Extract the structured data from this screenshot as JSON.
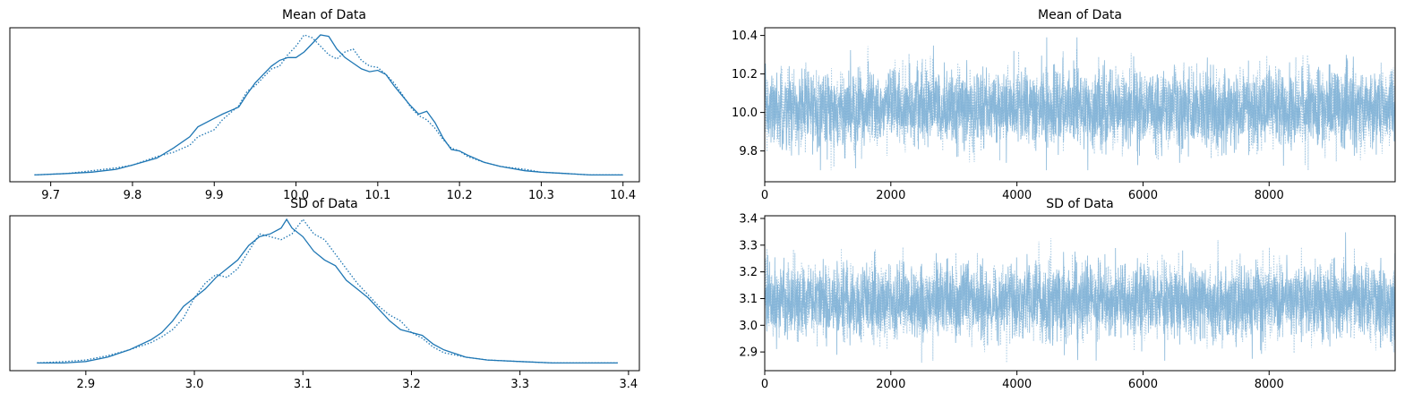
{
  "colors": {
    "series": "#1f77b4",
    "trace": "#7fb1d6"
  },
  "chart_data": [
    {
      "type": "line",
      "panel": "density-mean",
      "title": "Mean of Data",
      "xlim": [
        9.65,
        10.42
      ],
      "xticks": [
        9.7,
        9.8,
        9.9,
        10.0,
        10.1,
        10.2,
        10.3,
        10.4
      ],
      "xticklabels": [
        "9.7",
        "9.8",
        "9.9",
        "10.0",
        "10.1",
        "10.2",
        "10.3",
        "10.4"
      ],
      "yticks": [],
      "series": [
        {
          "style": "solid",
          "x": [
            9.68,
            9.72,
            9.75,
            9.78,
            9.8,
            9.83,
            9.85,
            9.87,
            9.88,
            9.9,
            9.91,
            9.93,
            9.94,
            9.95,
            9.96,
            9.97,
            9.98,
            9.99,
            10.0,
            10.01,
            10.02,
            10.03,
            10.04,
            10.05,
            10.06,
            10.07,
            10.08,
            10.09,
            10.1,
            10.11,
            10.12,
            10.13,
            10.14,
            10.15,
            10.16,
            10.17,
            10.18,
            10.19,
            10.2,
            10.21,
            10.23,
            10.25,
            10.28,
            10.3,
            10.33,
            10.36,
            10.4
          ],
          "y": [
            0.01,
            0.02,
            0.03,
            0.05,
            0.08,
            0.13,
            0.2,
            0.28,
            0.35,
            0.41,
            0.44,
            0.49,
            0.58,
            0.66,
            0.72,
            0.78,
            0.82,
            0.84,
            0.84,
            0.88,
            0.94,
            1.0,
            0.99,
            0.9,
            0.84,
            0.8,
            0.76,
            0.74,
            0.75,
            0.72,
            0.64,
            0.57,
            0.5,
            0.44,
            0.46,
            0.38,
            0.27,
            0.19,
            0.18,
            0.15,
            0.1,
            0.07,
            0.04,
            0.03,
            0.02,
            0.01,
            0.01
          ]
        },
        {
          "style": "dotted",
          "x": [
            9.68,
            9.72,
            9.75,
            9.78,
            9.8,
            9.83,
            9.85,
            9.87,
            9.88,
            9.9,
            9.91,
            9.93,
            9.94,
            9.95,
            9.96,
            9.97,
            9.98,
            9.99,
            10.0,
            10.01,
            10.02,
            10.03,
            10.04,
            10.05,
            10.06,
            10.07,
            10.08,
            10.09,
            10.1,
            10.11,
            10.12,
            10.13,
            10.14,
            10.15,
            10.16,
            10.17,
            10.18,
            10.19,
            10.2,
            10.21,
            10.23,
            10.25,
            10.28,
            10.3,
            10.33,
            10.36,
            10.4
          ],
          "y": [
            0.01,
            0.02,
            0.04,
            0.06,
            0.08,
            0.14,
            0.17,
            0.22,
            0.28,
            0.33,
            0.4,
            0.5,
            0.6,
            0.64,
            0.7,
            0.76,
            0.78,
            0.86,
            0.92,
            1.0,
            0.98,
            0.92,
            0.86,
            0.83,
            0.88,
            0.9,
            0.82,
            0.78,
            0.77,
            0.72,
            0.66,
            0.58,
            0.49,
            0.43,
            0.4,
            0.34,
            0.26,
            0.2,
            0.18,
            0.14,
            0.1,
            0.07,
            0.05,
            0.03,
            0.02,
            0.01,
            0.01
          ]
        }
      ]
    },
    {
      "type": "line",
      "panel": "trace-mean",
      "title": "Mean of Data",
      "xlim": [
        0,
        9999
      ],
      "ylim": [
        9.64,
        10.44
      ],
      "xticks": [
        0,
        2000,
        4000,
        6000,
        8000
      ],
      "xticklabels": [
        "0",
        "2000",
        "4000",
        "6000",
        "8000"
      ],
      "yticks": [
        9.8,
        10.0,
        10.2,
        10.4
      ],
      "yticklabels": [
        "9.8",
        "10.0",
        "10.2",
        "10.4"
      ],
      "series": [
        {
          "style": "solid",
          "center": 10.02,
          "sd": 0.1,
          "min": 9.7,
          "max": 10.39,
          "n": 10000
        },
        {
          "style": "dotted",
          "center": 10.02,
          "sd": 0.1,
          "min": 9.7,
          "max": 10.39,
          "n": 10000
        }
      ]
    },
    {
      "type": "line",
      "panel": "density-sd",
      "title": "SD of Data",
      "xlim": [
        2.83,
        3.41
      ],
      "xticks": [
        2.9,
        3.0,
        3.1,
        3.2,
        3.3,
        3.4
      ],
      "xticklabels": [
        "2.9",
        "3.0",
        "3.1",
        "3.2",
        "3.3",
        "3.4"
      ],
      "yticks": [],
      "series": [
        {
          "style": "solid",
          "x": [
            2.855,
            2.88,
            2.9,
            2.92,
            2.94,
            2.96,
            2.97,
            2.98,
            2.99,
            3.0,
            3.01,
            3.02,
            3.03,
            3.04,
            3.05,
            3.06,
            3.07,
            3.08,
            3.085,
            3.09,
            3.1,
            3.11,
            3.12,
            3.13,
            3.14,
            3.15,
            3.16,
            3.17,
            3.18,
            3.19,
            3.2,
            3.21,
            3.22,
            3.23,
            3.25,
            3.27,
            3.3,
            3.33,
            3.36,
            3.39
          ],
          "y": [
            0.01,
            0.01,
            0.02,
            0.05,
            0.1,
            0.17,
            0.22,
            0.3,
            0.4,
            0.46,
            0.52,
            0.6,
            0.66,
            0.72,
            0.82,
            0.88,
            0.9,
            0.94,
            1.0,
            0.94,
            0.88,
            0.78,
            0.72,
            0.68,
            0.58,
            0.52,
            0.46,
            0.38,
            0.3,
            0.24,
            0.22,
            0.2,
            0.14,
            0.1,
            0.05,
            0.03,
            0.02,
            0.01,
            0.01,
            0.01
          ]
        },
        {
          "style": "dotted",
          "x": [
            2.855,
            2.88,
            2.9,
            2.92,
            2.94,
            2.96,
            2.97,
            2.98,
            2.99,
            3.0,
            3.01,
            3.02,
            3.03,
            3.04,
            3.05,
            3.06,
            3.07,
            3.08,
            3.085,
            3.09,
            3.1,
            3.11,
            3.12,
            3.13,
            3.14,
            3.15,
            3.16,
            3.17,
            3.18,
            3.19,
            3.2,
            3.21,
            3.22,
            3.23,
            3.25,
            3.27,
            3.3,
            3.33,
            3.36,
            3.39
          ],
          "y": [
            0.01,
            0.02,
            0.03,
            0.06,
            0.1,
            0.15,
            0.19,
            0.24,
            0.32,
            0.46,
            0.56,
            0.62,
            0.6,
            0.66,
            0.78,
            0.9,
            0.88,
            0.86,
            0.88,
            0.9,
            1.0,
            0.9,
            0.86,
            0.76,
            0.66,
            0.56,
            0.48,
            0.4,
            0.34,
            0.3,
            0.22,
            0.18,
            0.12,
            0.08,
            0.05,
            0.03,
            0.02,
            0.01,
            0.01,
            0.01
          ]
        }
      ]
    },
    {
      "type": "line",
      "panel": "trace-sd",
      "title": "SD of Data",
      "xlim": [
        0,
        9999
      ],
      "ylim": [
        2.83,
        3.41
      ],
      "xticks": [
        0,
        2000,
        4000,
        6000,
        8000
      ],
      "xticklabels": [
        "0",
        "2000",
        "4000",
        "6000",
        "8000"
      ],
      "yticks": [
        2.9,
        3.0,
        3.1,
        3.2,
        3.3,
        3.4
      ],
      "yticklabels": [
        "2.9",
        "3.0",
        "3.1",
        "3.2",
        "3.3",
        "3.4"
      ],
      "series": [
        {
          "style": "solid",
          "center": 3.09,
          "sd": 0.07,
          "min": 2.86,
          "max": 3.38,
          "n": 10000
        },
        {
          "style": "dotted",
          "center": 3.09,
          "sd": 0.07,
          "min": 2.86,
          "max": 3.38,
          "n": 10000
        }
      ]
    }
  ]
}
